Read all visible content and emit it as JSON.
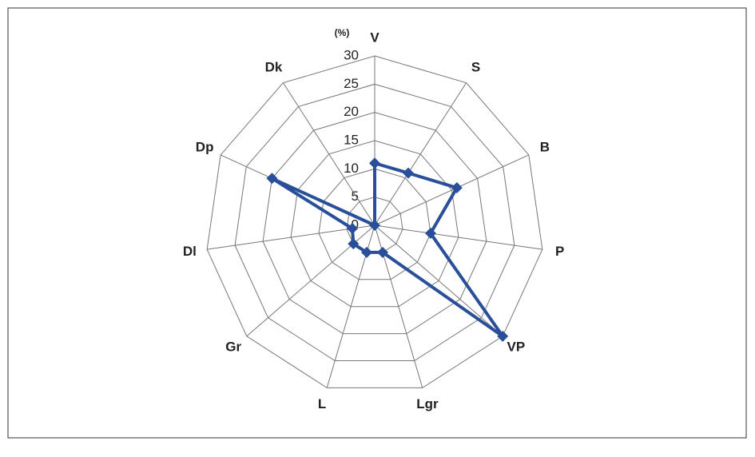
{
  "chart_data": {
    "type": "radar",
    "y_label": "(%)",
    "categories": [
      "V",
      "S",
      "B",
      "P",
      "VP",
      "Lgr",
      "L",
      "Gr",
      "Dl",
      "Dp",
      "Dk"
    ],
    "series": [
      {
        "name": null,
        "color": "#2a4f9a",
        "values": [
          11,
          11,
          16,
          10,
          30,
          5,
          5,
          5,
          4,
          20,
          0
        ]
      }
    ],
    "ylim": [
      0,
      30
    ],
    "yticks": [
      0,
      5,
      10,
      15,
      20,
      25,
      30
    ],
    "grid": true
  }
}
